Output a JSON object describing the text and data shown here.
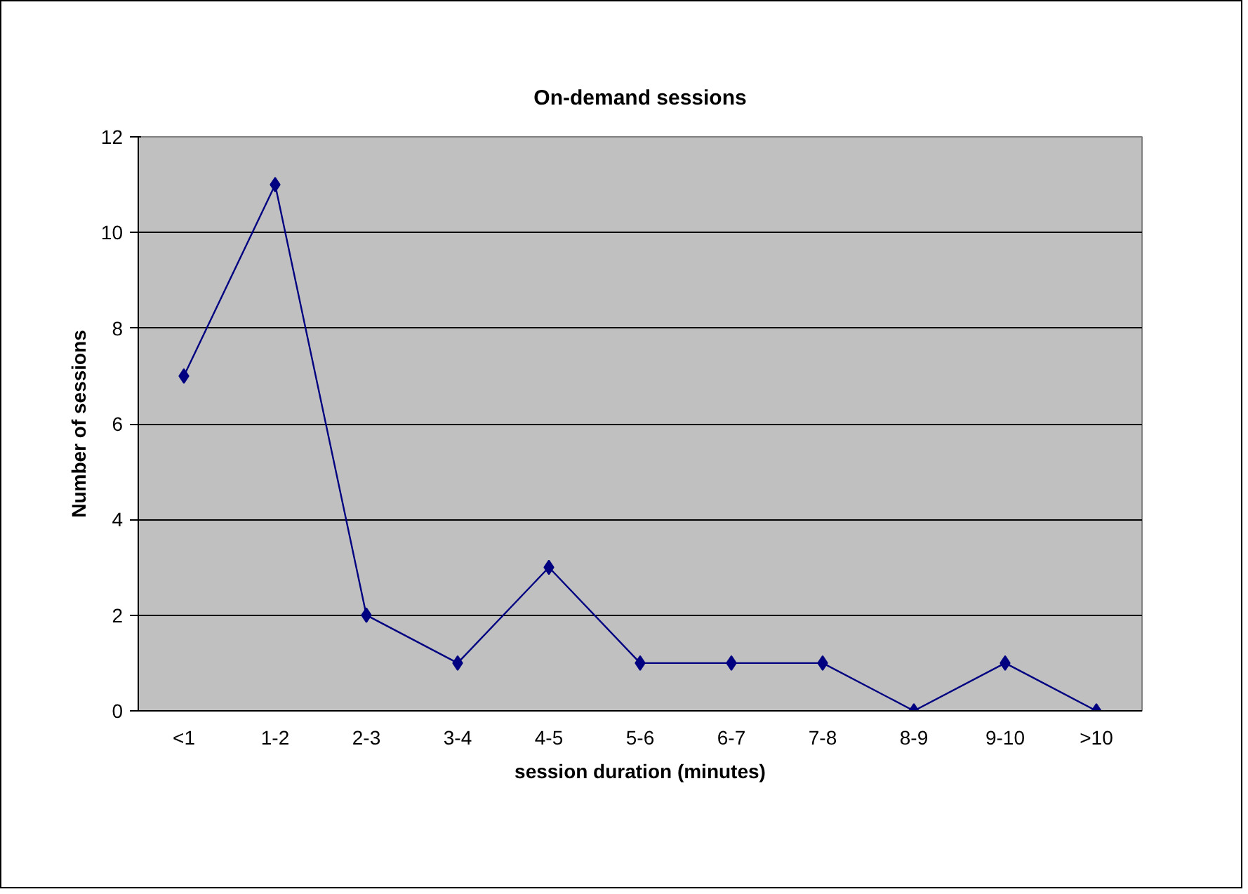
{
  "chart_data": {
    "type": "line",
    "title": "On-demand sessions",
    "xlabel": "session duration (minutes)",
    "ylabel": "Number of sessions",
    "categories": [
      "<1",
      "1-2",
      "2-3",
      "3-4",
      "4-5",
      "5-6",
      "6-7",
      "7-8",
      "8-9",
      "9-10",
      ">10"
    ],
    "series": [
      {
        "color": "#000080",
        "values": [
          7,
          11,
          2,
          1,
          3,
          1,
          1,
          1,
          0,
          1,
          0
        ]
      }
    ],
    "ylim": [
      0,
      12
    ],
    "yticks": [
      0,
      2,
      4,
      6,
      8,
      10,
      12
    ],
    "grid": "y",
    "marker": "diamond",
    "line_style": "solid"
  }
}
